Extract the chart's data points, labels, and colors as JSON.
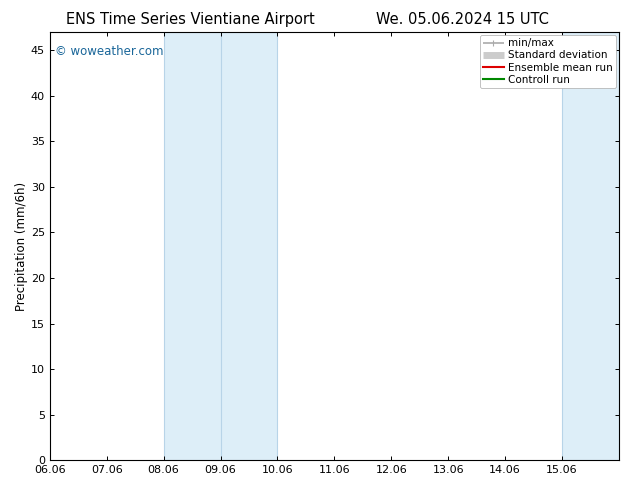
{
  "title_left": "ENS Time Series Vientiane Airport",
  "title_right": "We. 05.06.2024 15 UTC",
  "ylabel": "Precipitation (mm/6h)",
  "watermark": "© woweather.com",
  "xlim": [
    0,
    10
  ],
  "ylim": [
    0,
    47
  ],
  "yticks": [
    0,
    5,
    10,
    15,
    20,
    25,
    30,
    35,
    40,
    45
  ],
  "xtick_labels": [
    "06.06",
    "07.06",
    "08.06",
    "09.06",
    "10.06",
    "11.06",
    "12.06",
    "13.06",
    "14.06",
    "15.06"
  ],
  "xtick_positions": [
    0,
    1,
    2,
    3,
    4,
    5,
    6,
    7,
    8,
    9
  ],
  "shaded_bands": [
    {
      "xmin": 2,
      "xmax": 4,
      "color": "#ddeef8"
    },
    {
      "xmin": 9,
      "xmax": 10,
      "color": "#ddeef8"
    }
  ],
  "shaded_band_borders": [
    {
      "x": 2,
      "color": "#b8d4e8",
      "lw": 0.8
    },
    {
      "x": 3,
      "color": "#b8d4e8",
      "lw": 0.8
    },
    {
      "x": 4,
      "color": "#b8d4e8",
      "lw": 0.8
    },
    {
      "x": 9,
      "color": "#b8d4e8",
      "lw": 0.8
    }
  ],
  "legend_entries": [
    {
      "label": "min/max",
      "color": "#aaaaaa",
      "lw": 1.2,
      "type": "line_caps"
    },
    {
      "label": "Standard deviation",
      "color": "#cccccc",
      "lw": 5,
      "type": "band"
    },
    {
      "label": "Ensemble mean run",
      "color": "#dd0000",
      "lw": 1.5,
      "type": "line"
    },
    {
      "label": "Controll run",
      "color": "#008800",
      "lw": 1.5,
      "type": "line"
    }
  ],
  "bg_color": "#ffffff",
  "plot_bg_color": "#ffffff",
  "border_color": "#000000",
  "tick_color": "#000000",
  "title_fontsize": 10.5,
  "label_fontsize": 8.5,
  "tick_fontsize": 8,
  "legend_fontsize": 7.5,
  "watermark_color": "#1a6699",
  "watermark_fontsize": 8.5
}
